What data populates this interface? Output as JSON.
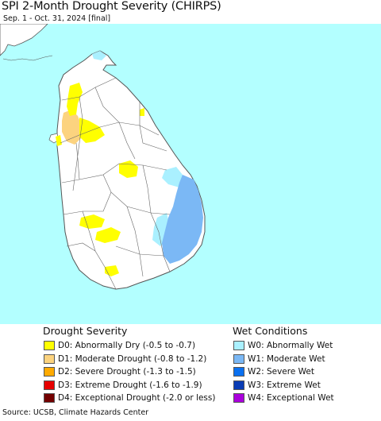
{
  "header": {
    "title": "SPI 2-Month Drought Severity (CHIRPS)",
    "subtitle": "Sep. 1 - Oct. 31, 2024 [final]"
  },
  "colors": {
    "ocean": "#b3ffff",
    "land": "#ffffff",
    "border": "#555555"
  },
  "legend": {
    "drought_title": "Drought Severity",
    "wet_title": "Wet Conditions",
    "drought_items": [
      {
        "label": "D0: Abnormally Dry (-0.5 to -0.7)",
        "color": "#ffff00"
      },
      {
        "label": "D1: Moderate Drought (-0.8 to -1.2)",
        "color": "#fcd37f"
      },
      {
        "label": "D2: Severe Drought (-1.3 to -1.5)",
        "color": "#ffaa00"
      },
      {
        "label": "D3: Extreme Drought (-1.6 to -1.9)",
        "color": "#e60000"
      },
      {
        "label": "D4: Exceptional Drought (-2.0 or less)",
        "color": "#730000"
      }
    ],
    "wet_items": [
      {
        "label": "W0: Abnormally Wet",
        "color": "#aaf0ff"
      },
      {
        "label": "W1: Moderate Wet",
        "color": "#7bb8f5"
      },
      {
        "label": "W2: Severe Wet",
        "color": "#0a70f0"
      },
      {
        "label": "W3: Extreme Wet",
        "color": "#0a3cb4"
      },
      {
        "label": "W4: Exceptional Wet",
        "color": "#aa00dc"
      }
    ]
  },
  "footer": {
    "source": "Source: UCSB, Climate Hazards Center"
  }
}
